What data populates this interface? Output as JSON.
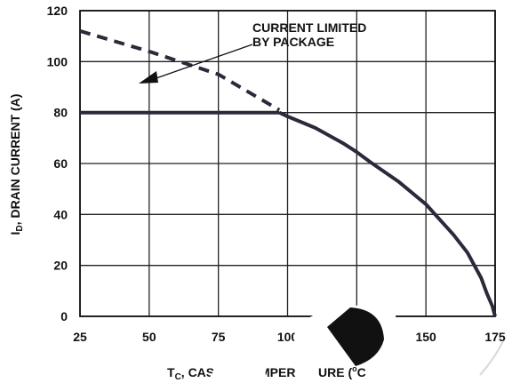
{
  "chart_data": {
    "type": "line",
    "xlabel_main": "T",
    "xlabel_sub": "C",
    "xlabel_rest": ", CASE ",
    "xlabel_frag1": "MPER",
    "xlabel_frag2": "URE (",
    "xlabel_deg": "o",
    "xlabel_frag3": "C",
    "ylabel_main": "I",
    "ylabel_sub": "D",
    "ylabel_rest": ", DRAIN CURRENT (A)",
    "xlim": [
      25,
      175
    ],
    "ylim": [
      0,
      120
    ],
    "x_ticks": [
      "25",
      "50",
      "75",
      "100",
      "125",
      "150",
      "175"
    ],
    "y_ticks": [
      "0",
      "20",
      "40",
      "60",
      "80",
      "100",
      "120"
    ],
    "grid": true,
    "annotation": {
      "line1": "CURRENT LIMITED",
      "line2": "BY PACKAGE"
    },
    "series": [
      {
        "style": "dashed",
        "x": [
          25,
          50,
          75,
          97
        ],
        "y": [
          112,
          104,
          95,
          81
        ]
      },
      {
        "style": "solid",
        "x": [
          25,
          50,
          75,
          97
        ],
        "y": [
          80,
          80,
          80,
          80
        ]
      },
      {
        "style": "solid",
        "x": [
          97,
          100,
          110,
          120,
          125,
          130,
          140,
          150,
          160,
          165,
          170,
          172,
          174,
          175
        ],
        "y": [
          80,
          78.5,
          74,
          68,
          64.5,
          60.5,
          53,
          44,
          32,
          25,
          15,
          9,
          4,
          0
        ]
      }
    ]
  }
}
